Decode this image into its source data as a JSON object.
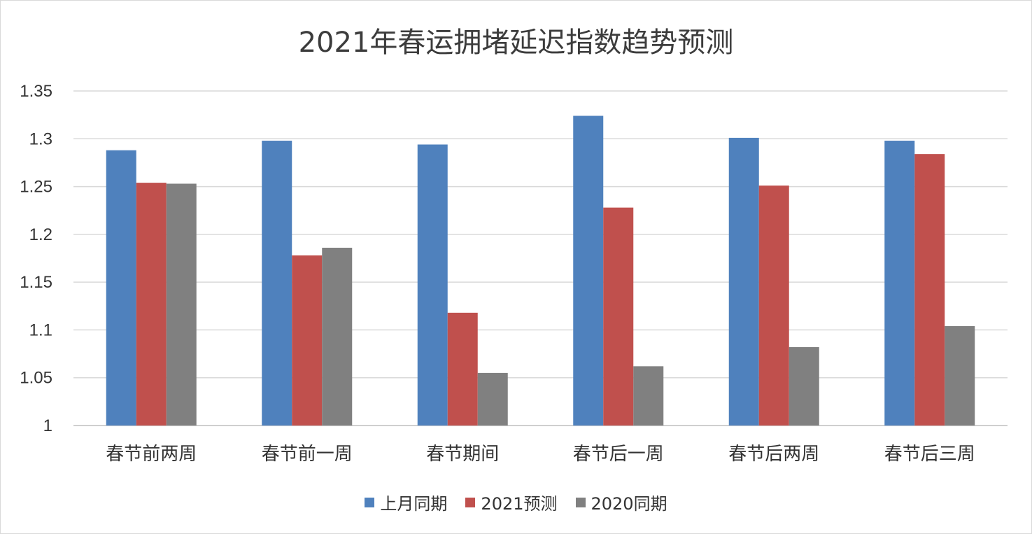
{
  "chart_data": {
    "type": "bar",
    "title": "2021年春运拥堵延迟指数趋势预测",
    "categories": [
      "春节前两周",
      "春节前一周",
      "春节期间",
      "春节后一周",
      "春节后两周",
      "春节后三周"
    ],
    "series": [
      {
        "name": "上月同期",
        "color": "#4f81bd",
        "values": [
          1.288,
          1.298,
          1.294,
          1.324,
          1.301,
          1.298
        ]
      },
      {
        "name": "2021预测",
        "color": "#c0504d",
        "values": [
          1.254,
          1.178,
          1.118,
          1.228,
          1.251,
          1.284
        ]
      },
      {
        "name": "2020同期",
        "color": "#808080",
        "values": [
          1.253,
          1.186,
          1.055,
          1.062,
          1.082,
          1.104
        ]
      }
    ],
    "ylim": [
      1,
      1.35
    ],
    "yticks": [
      "1",
      "1.05",
      "1.1",
      "1.15",
      "1.2",
      "1.25",
      "1.3",
      "1.35"
    ],
    "grid": true,
    "legend_position": "bottom"
  }
}
